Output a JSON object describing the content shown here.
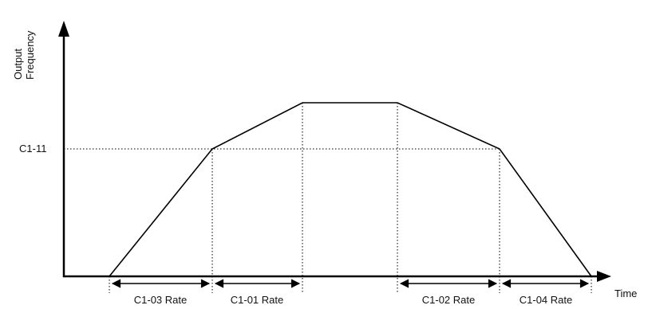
{
  "axes": {
    "y_label_line1": "Output",
    "y_label_line2": "Frequency",
    "x_label": "Time"
  },
  "level_label": "C1-11",
  "intervals": [
    {
      "label": "C1-03 Rate"
    },
    {
      "label": "C1-01 Rate"
    },
    {
      "label": "C1-02 Rate"
    },
    {
      "label": "C1-04 Rate"
    }
  ]
}
